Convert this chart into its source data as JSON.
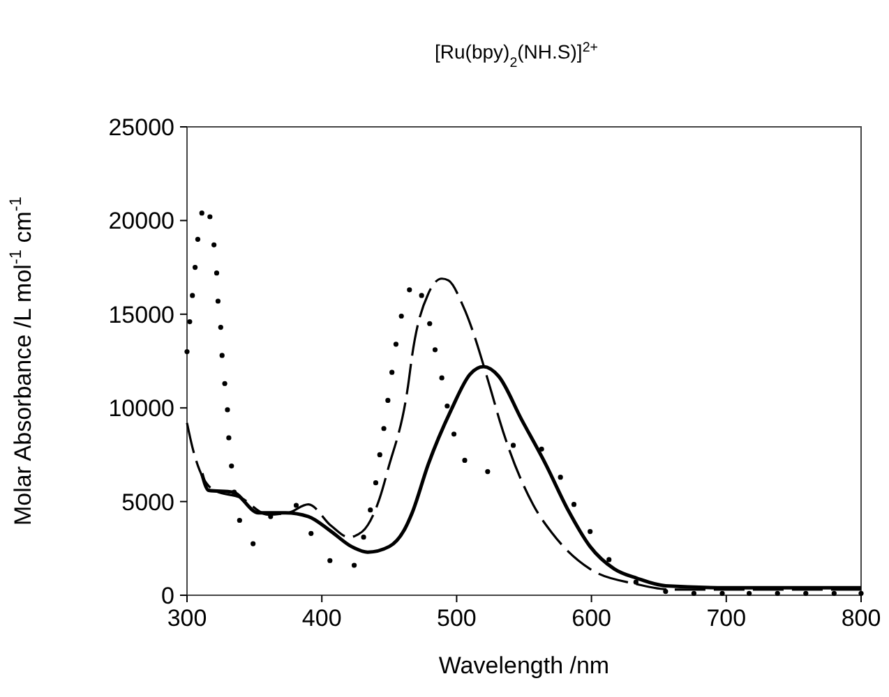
{
  "chart_data": {
    "type": "line",
    "title": "[Ru(bpy)$_{2}$(NH.S)]$^{2+}$",
    "xlabel": "Wavelength /nm",
    "ylabel": "Molar Absorbance /L mol$^{-1}$ cm$^{-1}$",
    "xlim": [
      300,
      800
    ],
    "xticks": [
      300,
      400,
      500,
      600,
      700,
      800
    ],
    "ylim": [
      0,
      25000
    ],
    "yticks": [
      0,
      5000,
      10000,
      15000,
      20000,
      25000
    ],
    "grid": false,
    "series": [
      {
        "color": "#000000",
        "line_style": "solid",
        "x": [
          311,
          316,
          334,
          353,
          373,
          390,
          407,
          422,
          434,
          450,
          462,
          467,
          479,
          496,
          510,
          520,
          531,
          548,
          566,
          583,
          599,
          617,
          634,
          655,
          700,
          750,
          800
        ],
        "values": [
          6500,
          5600,
          5500,
          4400,
          4400,
          4200,
          3400,
          2600,
          2300,
          2600,
          3600,
          4400,
          7000,
          9900,
          11800,
          12200,
          11700,
          9400,
          7000,
          4500,
          2600,
          1400,
          900,
          500,
          400,
          400,
          400
        ]
      },
      {
        "color": "#000000",
        "line_style": "dashed",
        "x": [
          300,
          304,
          320,
          340,
          360,
          375,
          390,
          407,
          420,
          430,
          443,
          449,
          464,
          467,
          479,
          489,
          494,
          505,
          526,
          532,
          557,
          571,
          599,
          633,
          660,
          700,
          750,
          800
        ],
        "values": [
          9200,
          7900,
          5600,
          5200,
          4300,
          4400,
          4850,
          3700,
          3100,
          3400,
          5200,
          6700,
          11200,
          12800,
          16100,
          16900,
          16800,
          15400,
          10800,
          9300,
          4800,
          3300,
          1400,
          600,
          300,
          300,
          300,
          300
        ]
      },
      {
        "type": "scatter",
        "color": "#000000",
        "marker": "circle",
        "x": [
          300,
          302,
          304,
          306,
          308,
          311,
          317,
          320,
          322,
          323,
          325,
          326,
          328,
          330,
          331,
          333,
          335,
          339,
          349,
          362,
          381,
          392,
          406,
          424,
          431,
          436,
          440,
          443,
          446,
          449,
          452,
          455,
          459,
          465,
          474,
          480,
          484,
          489,
          493,
          498,
          506,
          523,
          542,
          563,
          577,
          587,
          599,
          613,
          633,
          655,
          676,
          697,
          717,
          738,
          759,
          780,
          800
        ],
        "values": [
          13000,
          14600,
          16000,
          17500,
          19000,
          20400,
          20200,
          18700,
          17200,
          15700,
          14300,
          12800,
          11300,
          9900,
          8400,
          6900,
          5500,
          4000,
          2750,
          4200,
          4800,
          3300,
          1850,
          1600,
          3100,
          4550,
          6000,
          7500,
          8900,
          10400,
          11900,
          13400,
          14900,
          16300,
          16000,
          14500,
          13100,
          11600,
          10100,
          8600,
          7200,
          6600,
          8000,
          7800,
          6300,
          4850,
          3400,
          1900,
          700,
          200,
          100,
          100,
          100,
          100,
          100,
          100,
          100
        ]
      }
    ]
  }
}
